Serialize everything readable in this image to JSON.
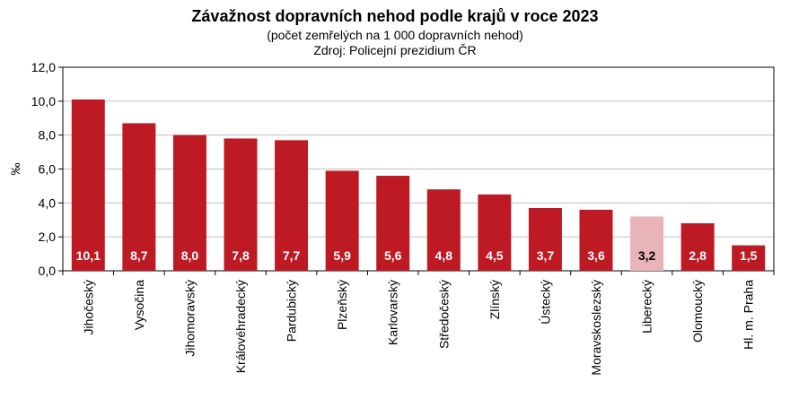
{
  "chart_data": {
    "type": "bar",
    "title": "Závažnost dopravních nehod podle krajů v roce 2023",
    "subtitle": "(počet zemřelých na 1 000 dopravních nehod)",
    "source": "Zdroj: Policejní prezidium ČR",
    "ylabel": "‰",
    "xlabel": "",
    "ylim": [
      0,
      12
    ],
    "yticks": [
      "0,0",
      "2,0",
      "4,0",
      "6,0",
      "8,0",
      "10,0",
      "12,0"
    ],
    "grid": true,
    "legend": "none",
    "categories": [
      "Jihočeský",
      "Vysočina",
      "Jihomoravský",
      "Královéhradecký",
      "Pardubický",
      "Plzeňský",
      "Karlovarský",
      "Středočeský",
      "Zlínský",
      "Ústecký",
      "Moravskoslezský",
      "Liberecký",
      "Olomoucký",
      "Hl. m. Praha"
    ],
    "values": [
      10.1,
      8.7,
      8.0,
      7.8,
      7.7,
      5.9,
      5.6,
      4.8,
      4.5,
      3.7,
      3.6,
      3.2,
      2.8,
      1.5
    ],
    "value_labels": [
      "10,1",
      "8,7",
      "8,0",
      "7,8",
      "7,7",
      "5,9",
      "5,6",
      "4,8",
      "4,5",
      "3,7",
      "3,6",
      "3,2",
      "2,8",
      "1,5"
    ],
    "highlight_index": 11,
    "colors": {
      "bar": "#be1a24",
      "highlight": "#e8b4b8",
      "label": "#ffffff",
      "highlight_label": "#000000",
      "grid": "#c0c0c0"
    }
  }
}
